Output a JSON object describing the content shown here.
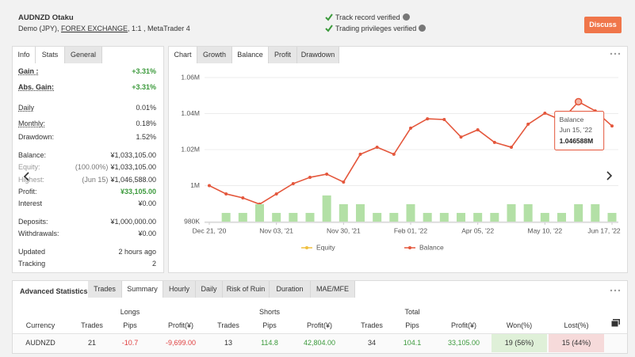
{
  "header": {
    "title": "AUDNZD Otaku",
    "account": "Demo (JPY),",
    "broker": "FOREX EXCHANGE",
    "details": ", 1:1 , MetaTrader 4",
    "verified": [
      "Track record verified",
      "Trading privileges verified"
    ],
    "button": "Discuss"
  },
  "stats_panel": {
    "tabs": [
      "Info",
      "Stats",
      "General"
    ],
    "rows": [
      {
        "label": "Gain :",
        "value": "+3.31%",
        "color": "#3c9a3c"
      },
      {
        "label": "Abs. Gain:",
        "value": "+3.31%",
        "color": "#3c9a3c"
      },
      {
        "label": "Daily",
        "value": "0.01%"
      },
      {
        "label": "Monthly:",
        "value": "0.18%"
      },
      {
        "label": "Drawdown:",
        "value": "1.52%"
      },
      {
        "label": "Balance:",
        "value": "¥1,033,105.00"
      },
      {
        "label": "Equity:",
        "note": "(100.00%)",
        "value": "¥1,033,105.00"
      },
      {
        "label": "Highest:",
        "note": "(Jun 15)",
        "value": "¥1,046,588.00"
      },
      {
        "label": "Profit:",
        "value": "¥33,105.00",
        "color": "#3c9a3c"
      },
      {
        "label": "Interest",
        "value": "¥0.00"
      },
      {
        "label": "Deposits:",
        "value": "¥1,000,000.00"
      },
      {
        "label": "Withdrawals:",
        "value": "¥0.00"
      },
      {
        "label": "Updated",
        "value": "2 hours ago"
      },
      {
        "label": "Tracking",
        "value": "2"
      }
    ]
  },
  "chart_tabs": [
    "Chart",
    "Growth",
    "Balance",
    "Profit",
    "Drawdown"
  ],
  "chart_data": {
    "type": "line",
    "categories": [
      "Dec 21, '20",
      null,
      null,
      null,
      "Nov 03, '21",
      null,
      null,
      null,
      "Nov 30, '21",
      null,
      null,
      null,
      "Feb 01, '22",
      null,
      null,
      null,
      "Apr 05, '22",
      null,
      null,
      null,
      "May 10, '22",
      null,
      null,
      null,
      "Jun 17, '22"
    ],
    "series": [
      {
        "name": "Equity",
        "color": "#f0c040",
        "hidden": true
      },
      {
        "name": "Balance",
        "color": "#e4573c",
        "values": [
          1000000,
          995400,
          993200,
          989700,
          995400,
          1001100,
          1004600,
          1006400,
          1002000,
          1017400,
          1021300,
          1017400,
          1031900,
          1037100,
          1036700,
          1027000,
          1031000,
          1024000,
          1021300,
          1034100,
          1040200,
          1036300,
          1046588,
          1041500,
          1033105
        ]
      },
      {
        "type": "bar",
        "axis": "y2",
        "color": "#b3e0a6",
        "values": [
          null,
          1,
          1,
          2,
          1,
          1,
          1,
          3,
          2,
          2,
          1,
          1,
          2,
          1,
          1,
          1,
          1,
          1,
          2,
          2,
          1,
          1,
          2,
          2,
          1
        ]
      }
    ],
    "ylim": [
      980000,
      1060000
    ],
    "yticks": [
      {
        "value": 980000,
        "label": "980K"
      },
      {
        "value": 1000000,
        "label": "1M"
      },
      {
        "value": 1020000,
        "label": "1.02M"
      },
      {
        "value": 1040000,
        "label": "1.04M"
      },
      {
        "value": 1060000,
        "label": "1.06M"
      }
    ],
    "y2lim": [
      0,
      16.5
    ],
    "grid": true,
    "tooltip": {
      "series": "Balance",
      "date": "Jun 15, '22",
      "value_label": "1.046588M"
    }
  },
  "advanced": {
    "title": "Advanced Statistics",
    "tabs": [
      "Trades",
      "Summary",
      "Hourly",
      "Daily",
      "Risk of Ruin",
      "Duration",
      "MAE/MFE"
    ],
    "groups": [
      "Longs",
      "Shorts",
      "Total"
    ],
    "columns": [
      "Currency",
      "Trades",
      "Pips",
      "Profit(¥)",
      "Trades",
      "Pips",
      "Profit(¥)",
      "Trades",
      "Pips",
      "Profit(¥)",
      "Won(%)",
      "Lost(%)"
    ],
    "rows": [
      [
        "AUDNZD",
        "21",
        "-10.7",
        "-9,699.00",
        "13",
        "114.8",
        "42,804.00",
        "34",
        "104.1",
        "33,105.00",
        "19 (56%)",
        "15 (44%)"
      ]
    ]
  }
}
